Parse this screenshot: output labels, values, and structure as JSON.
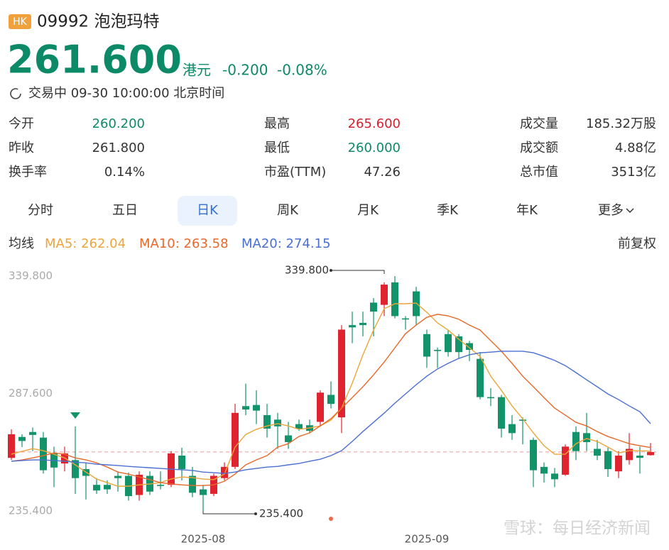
{
  "header": {
    "market": "HK",
    "code_name": "09992 泡泡玛特",
    "price": "261.600",
    "currency": "港元",
    "change": "-0.200",
    "change_pct": "-0.08%",
    "status": "交易中 09-30 10:00:00 北京时间",
    "color": "#0c8a68"
  },
  "stats": [
    [
      {
        "label": "今开",
        "value": "260.200",
        "color": "#0c8a68"
      },
      {
        "label": "最高",
        "value": "265.600",
        "color": "#d61f2c"
      },
      {
        "label": "成交量",
        "value": "185.32万股",
        "color": "#333333"
      }
    ],
    [
      {
        "label": "昨收",
        "value": "261.800",
        "color": "#333333"
      },
      {
        "label": "最低",
        "value": "260.000",
        "color": "#0c8a68"
      },
      {
        "label": "成交额",
        "value": "4.88亿",
        "color": "#333333"
      }
    ],
    [
      {
        "label": "换手率",
        "value": "0.14%",
        "color": "#333333"
      },
      {
        "label": "市盈(TTM)",
        "value": "47.26",
        "color": "#333333"
      },
      {
        "label": "总市值",
        "value": "3513亿",
        "color": "#333333"
      }
    ]
  ],
  "tabs": [
    "分时",
    "五日",
    "日K",
    "周K",
    "月K",
    "季K",
    "年K",
    "更多"
  ],
  "active_tab": 2,
  "ma_label": "均线",
  "adjust": "前复权",
  "watermark": "雪球：每日经济新闻",
  "chart_data": {
    "type": "candlestick",
    "up_color": "#e0242f",
    "down_color": "#13936a",
    "ylim": [
      235.4,
      339.8
    ],
    "yticks": [
      {
        "value": 339.8,
        "label": "339.800"
      },
      {
        "value": 287.6,
        "label": "287.600"
      },
      {
        "value": 235.4,
        "label": "235.400"
      }
    ],
    "grid": false,
    "max_label": "339.800",
    "min_label": "235.400",
    "categories": [
      null,
      null,
      null,
      null,
      null,
      null,
      null,
      null,
      null,
      null,
      null,
      null,
      null,
      null,
      null,
      null,
      null,
      null,
      "2025-08",
      null,
      null,
      null,
      null,
      null,
      null,
      null,
      null,
      null,
      null,
      null,
      null,
      null,
      null,
      null,
      null,
      null,
      null,
      null,
      null,
      "2025-09",
      null,
      null,
      null,
      null,
      null,
      null,
      null,
      null,
      null,
      null,
      null,
      null,
      null,
      null,
      null,
      null,
      null,
      null,
      null,
      null,
      null
    ],
    "open": [
      259,
      268.3,
      270.5,
      268,
      261,
      256.5,
      258,
      254,
      247,
      247,
      251,
      251,
      242.5,
      251,
      247,
      247,
      260,
      251,
      245,
      243,
      250,
      255,
      282,
      282.5,
      278,
      276,
      269,
      274,
      273.5,
      275,
      287,
      277,
      318,
      319,
      328,
      327,
      337,
      321,
      333,
      314,
      307,
      314,
      313,
      310,
      303,
      286,
      286,
      274,
      276,
      267,
      255,
      252,
      251.5,
      270.5,
      270,
      263,
      262,
      253,
      258,
      260,
      260.2
    ],
    "high": [
      271.7,
      269.5,
      272.5,
      270.5,
      264,
      264,
      273,
      257,
      250,
      249,
      253,
      252.5,
      253,
      253,
      253,
      262,
      263.5,
      255,
      247,
      252,
      257,
      283,
      292,
      289,
      283,
      279,
      275,
      276,
      276,
      289,
      293,
      318,
      324,
      324,
      330,
      337,
      339.8,
      322,
      335,
      316,
      308,
      316,
      314,
      311,
      306,
      290,
      287,
      278,
      277,
      268,
      257,
      254.5,
      265,
      273,
      279,
      267,
      263.5,
      262,
      270,
      264,
      265.6
    ],
    "low": [
      258.1,
      263.8,
      262,
      252,
      246,
      253,
      243,
      240.5,
      243,
      243,
      244,
      240,
      240,
      242.5,
      245,
      246,
      249,
      241.5,
      235.4,
      242,
      249,
      254,
      278,
      274,
      268,
      263,
      263,
      271,
      270,
      273,
      281,
      270,
      310,
      313,
      313,
      322,
      321,
      316,
      318,
      299,
      299,
      304,
      303,
      302,
      285,
      282,
      268,
      267,
      265,
      246,
      248,
      246,
      251,
      258,
      262,
      258,
      250.5,
      250,
      256,
      252,
      260
    ],
    "close": [
      269.5,
      266.5,
      269.2,
      253.5,
      254.7,
      261,
      250,
      251,
      244.5,
      245,
      250,
      242,
      251.5,
      244,
      246.5,
      261,
      254,
      243.5,
      242.5,
      251,
      255,
      279,
      280.5,
      280,
      272,
      273,
      266,
      272,
      271,
      288,
      283,
      316,
      317,
      318,
      324,
      336,
      322,
      320.5,
      322,
      304,
      306.5,
      306,
      306,
      307,
      286,
      285.5,
      272,
      270,
      275.5,
      253.5,
      252,
      249.5,
      264,
      262,
      266,
      260,
      254,
      260,
      263,
      259,
      261.6
    ],
    "lines": [
      {
        "name": "MA5: 262.04",
        "color": "#eba53a",
        "values": [
          260.6,
          261.9,
          263.1,
          262.2,
          260.6,
          259.0,
          255.9,
          252.7,
          249.6,
          248.0,
          246.4,
          246.4,
          247.0,
          247.4,
          248.0,
          249.6,
          250.5,
          250.2,
          249.6,
          249.3,
          251.8,
          263.8,
          269.4,
          271.7,
          273.2,
          274.2,
          273.2,
          271.7,
          272.3,
          273.2,
          275.8,
          281.1,
          292.2,
          304.8,
          315.8,
          325.3,
          327.5,
          327.5,
          327.8,
          323.7,
          319.0,
          315.8,
          311.7,
          307.9,
          304.1,
          295.3,
          289.0,
          282.1,
          276.4,
          270.1,
          264.4,
          260.6,
          260.6,
          265.3,
          267.6,
          266.3,
          263.8,
          261.2,
          262.2,
          262.2,
          262.0
        ]
      },
      {
        "name": "MA10: 263.58",
        "color": "#e8682a",
        "values": [
          257.5,
          258.1,
          259.0,
          260.0,
          261.2,
          260.6,
          259.0,
          258.1,
          256.8,
          254.9,
          252.7,
          251.8,
          250.5,
          249.3,
          248.0,
          247.4,
          247.0,
          246.7,
          246.7,
          247.0,
          248.6,
          251.8,
          255.9,
          258.1,
          260.0,
          263.8,
          265.3,
          268.5,
          270.1,
          273.2,
          276.4,
          281.1,
          285.8,
          290.6,
          295.9,
          301.6,
          307.9,
          314.2,
          318.0,
          321.5,
          322.8,
          322.1,
          320.6,
          318.0,
          315.8,
          311.1,
          306.4,
          301.0,
          295.3,
          290.6,
          285.8,
          281.1,
          278.0,
          274.8,
          273.2,
          270.7,
          268.5,
          266.9,
          265.3,
          264.4,
          263.6
        ]
      },
      {
        "name": "MA20: 274.15",
        "color": "#4a6fd0",
        "values": [
          257.5,
          257.8,
          258.1,
          258.1,
          257.8,
          257.5,
          257.1,
          256.8,
          256.2,
          255.9,
          255.6,
          255.2,
          254.9,
          254.6,
          254.3,
          254.0,
          253.7,
          253.4,
          252.7,
          252.4,
          252.1,
          252.7,
          253.7,
          254.3,
          254.9,
          255.2,
          255.9,
          256.5,
          257.5,
          258.4,
          260.0,
          262.2,
          266.3,
          270.7,
          274.8,
          278.9,
          283.3,
          287.4,
          291.5,
          295.3,
          298.5,
          301.0,
          303.2,
          304.8,
          305.7,
          306.0,
          306.4,
          306.4,
          306.4,
          305.7,
          304.1,
          302.3,
          300.0,
          296.9,
          293.7,
          290.6,
          287.4,
          284.9,
          282.1,
          279.5,
          274.2
        ]
      }
    ]
  }
}
